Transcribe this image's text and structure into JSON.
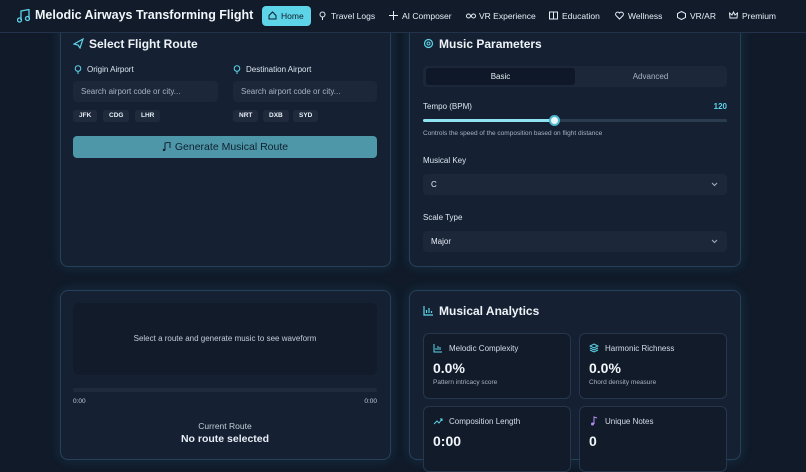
{
  "header": {
    "title": "Melodic Airways Transforming Flight",
    "nav": [
      "Home",
      "Travel Logs",
      "AI Composer",
      "VR Experience",
      "Education",
      "Wellness",
      "VR/AR",
      "Premium"
    ]
  },
  "flight_route": {
    "title": "Select Flight Route",
    "origin": {
      "label": "Origin Airport",
      "placeholder": "Search airport code or city...",
      "chips": [
        "JFK",
        "CDG",
        "LHR"
      ]
    },
    "destination": {
      "label": "Destination Airport",
      "placeholder": "Search airport code or city...",
      "chips": [
        "NRT",
        "DXB",
        "SYD"
      ]
    },
    "button": "Generate Musical Route"
  },
  "music_parameters": {
    "title": "Music Parameters",
    "tabs": [
      "Basic",
      "Advanced"
    ],
    "tempo": {
      "label": "Tempo (BPM)",
      "value": 120,
      "hint": "Controls the speed of the composition based on flight distance"
    },
    "key": {
      "label": "Musical Key",
      "value": "C"
    },
    "scale": {
      "label": "Scale Type",
      "value": "Major"
    }
  },
  "player": {
    "placeholder": "Select a route and generate music to see waveform",
    "start": "0:00",
    "end": "0:00",
    "route_label": "Current Route",
    "route_value": "No route selected"
  },
  "analytics": {
    "title": "Musical Analytics",
    "cards": [
      {
        "label": "Melodic Complexity",
        "value": "0.0%",
        "desc": "Pattern intricacy score"
      },
      {
        "label": "Harmonic Richness",
        "value": "0.0%",
        "desc": "Chord density measure"
      },
      {
        "label": "Composition Length",
        "value": "0:00"
      },
      {
        "label": "Unique Notes",
        "value": 0
      }
    ]
  }
}
